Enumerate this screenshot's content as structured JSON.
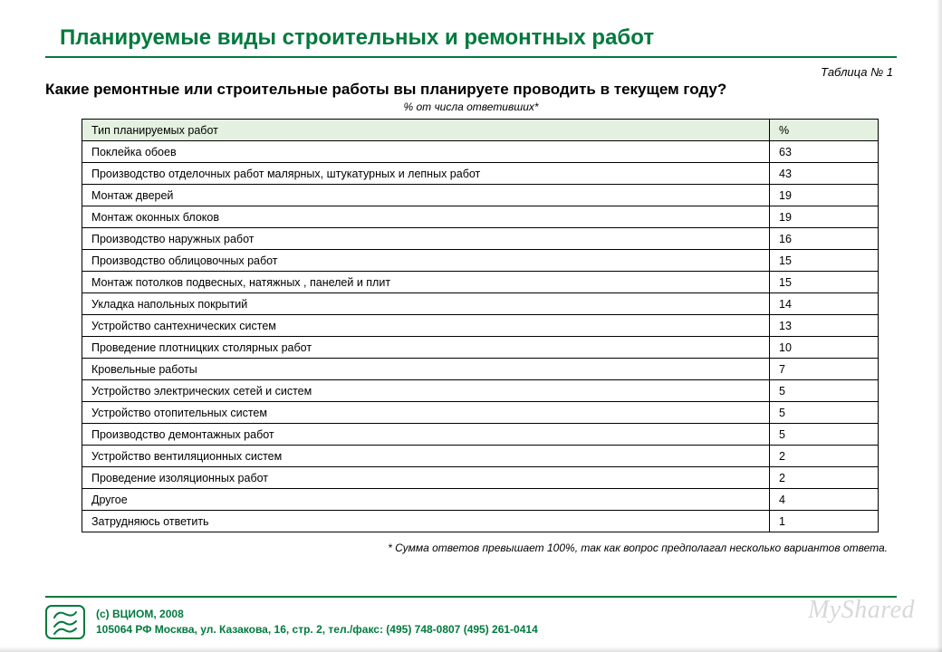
{
  "colors": {
    "accent": "#007a3d",
    "header_bg": "#e4f0e0",
    "border": "#000000",
    "text": "#000000",
    "watermark": "#d8d8d8",
    "background": "#ffffff"
  },
  "title": "Планируемые виды строительных и ремонтных работ",
  "table_label": "Таблица № 1",
  "question": "Какие ремонтные или строительные работы вы планируете проводить в текущем году?",
  "subnote": "% от числа ответивших*",
  "table": {
    "columns": [
      "Тип планируемых работ",
      "%"
    ],
    "rows": [
      [
        "Поклейка обоев",
        "63"
      ],
      [
        "Производство отделочных работ малярных, штукатурных и лепных работ",
        "43"
      ],
      [
        "Монтаж дверей",
        "19"
      ],
      [
        "Монтаж оконных блоков",
        "19"
      ],
      [
        "Производство наружных работ",
        "16"
      ],
      [
        "Производство облицовочных работ",
        "15"
      ],
      [
        "Монтаж потолков подвесных, натяжных , панелей и плит",
        "15"
      ],
      [
        "Укладка напольных покрытий",
        "14"
      ],
      [
        "Устройство сантехнических систем",
        "13"
      ],
      [
        "Проведение плотницких столярных работ",
        "10"
      ],
      [
        "Кровельные работы",
        "7"
      ],
      [
        "Устройство электрических сетей и систем",
        "5"
      ],
      [
        "Устройство отопительных систем",
        "5"
      ],
      [
        "Производство демонтажных работ",
        "5"
      ],
      [
        "Устройство вентиляционных систем",
        "2"
      ],
      [
        "Проведение изоляционных работ",
        "2"
      ],
      [
        "Другое",
        "4"
      ],
      [
        "Затрудняюсь ответить",
        "1"
      ]
    ]
  },
  "footnote": "* Сумма ответов превышает 100%, так как вопрос предполагал несколько вариантов ответа.",
  "footer": {
    "line1": "(с) ВЦИОМ, 2008",
    "line2": "105064 РФ Москва, ул. Казакова, 16, стр. 2, тел./факс: (495) 748-0807 (495) 261-0414"
  },
  "watermark": "MyShared"
}
